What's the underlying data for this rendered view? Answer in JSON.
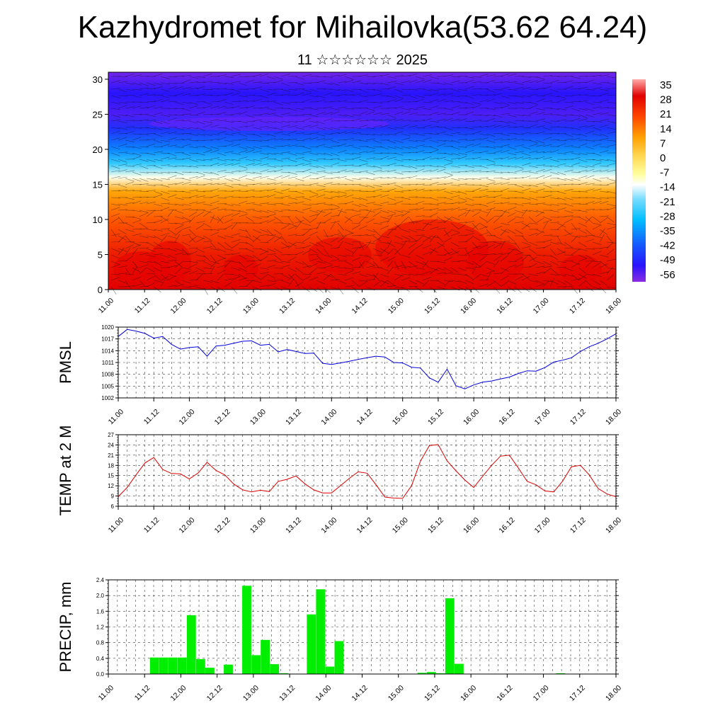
{
  "title": "Kazhydromet for Mihailovka(53.62 64.24)",
  "subtitle": "11 ☆☆☆☆☆☆ 2025",
  "chart_data": [
    {
      "type": "heatmap",
      "name": "cross-section",
      "x_tick_labels": [
        "11.00",
        "11.12",
        "12.00",
        "12.12",
        "13.00",
        "13.12",
        "14.00",
        "14.12",
        "15.00",
        "15.12",
        "16.00",
        "16.12",
        "17.00",
        "17.12",
        "18.00"
      ],
      "y_tick_labels": [
        "0",
        "5",
        "10",
        "15",
        "20",
        "25",
        "30"
      ],
      "ylim": [
        0,
        31
      ],
      "colorbar_labels": [
        "35",
        "28",
        "21",
        "14",
        "7",
        "0",
        "-7",
        "-14",
        "-21",
        "-28",
        "-35",
        "-42",
        "-49",
        "-56"
      ],
      "colorbar_range": [
        -60,
        38
      ],
      "color_profile": [
        {
          "y": 0,
          "t": 30
        },
        {
          "y": 5,
          "t": 26
        },
        {
          "y": 10,
          "t": 18
        },
        {
          "y": 14,
          "t": 9
        },
        {
          "y": 16,
          "t": -12
        },
        {
          "y": 18,
          "t": -26
        },
        {
          "y": 20,
          "t": -37
        },
        {
          "y": 23,
          "t": -48
        },
        {
          "y": 25,
          "t": -55
        },
        {
          "y": 28,
          "t": -52
        },
        {
          "y": 31,
          "t": -58
        }
      ],
      "colors": [
        "#8a2be2",
        "#1a1aff",
        "#00bfff",
        "#ffffff",
        "#ffff99",
        "#ffb000",
        "#ff2000",
        "#e00000"
      ]
    },
    {
      "type": "line",
      "name": "PMSL",
      "ylabel": "PMSL",
      "ylim": [
        1002,
        1020
      ],
      "yticks": [
        1002,
        1005,
        1008,
        1011,
        1014,
        1017,
        1020
      ],
      "x_tick_labels": [
        "11.00",
        "11.12",
        "12.00",
        "12.12",
        "13.00",
        "13.12",
        "14.00",
        "14.12",
        "15.00",
        "15.12",
        "16.00",
        "16.12",
        "17.00",
        "17.12",
        "18.00"
      ],
      "color": "#0000dd",
      "values": [
        1017.6,
        1019.4,
        1019.0,
        1018.4,
        1017.2,
        1017.6,
        1015.6,
        1014.4,
        1014.8,
        1015.0,
        1012.6,
        1015.2,
        1015.4,
        1015.9,
        1016.4,
        1016.5,
        1015.4,
        1015.6,
        1013.7,
        1014.3,
        1013.8,
        1013.3,
        1013.4,
        1010.8,
        1010.5,
        1010.9,
        1011.3,
        1011.8,
        1012.2,
        1012.6,
        1012.4,
        1011.0,
        1010.9,
        1009.8,
        1009.6,
        1007.1,
        1006.0,
        1009.3,
        1005.1,
        1004.3,
        1005.3,
        1006.0,
        1006.3,
        1006.8,
        1007.3,
        1008.2,
        1008.9,
        1008.8,
        1009.7,
        1011.1,
        1011.6,
        1012.2,
        1013.8,
        1015.0,
        1015.9,
        1017.0,
        1018.3
      ]
    },
    {
      "type": "line",
      "name": "TEMP at 2 M",
      "ylabel": "TEMP at 2 M",
      "ylim": [
        6,
        27
      ],
      "yticks": [
        6,
        9,
        12,
        15,
        18,
        21,
        24,
        27
      ],
      "x_tick_labels": [
        "11.00",
        "11.12",
        "12.00",
        "12.12",
        "13.00",
        "13.12",
        "14.00",
        "14.12",
        "15.00",
        "15.12",
        "16.00",
        "16.12",
        "17.00",
        "17.12",
        "18.00"
      ],
      "color": "#dd0000",
      "values": [
        8.8,
        11.5,
        15.2,
        18.7,
        20.3,
        16.8,
        15.6,
        15.5,
        14.0,
        15.8,
        18.9,
        16.5,
        15.2,
        12.5,
        10.8,
        10.2,
        10.7,
        10.3,
        13.3,
        13.9,
        14.9,
        12.6,
        10.8,
        9.9,
        9.9,
        12.0,
        14.2,
        16.1,
        15.7,
        12.3,
        8.7,
        8.4,
        8.3,
        12.0,
        19.2,
        23.8,
        24.1,
        19.3,
        16.4,
        13.7,
        11.5,
        14.8,
        18.0,
        20.7,
        21.0,
        17.3,
        13.3,
        12.3,
        10.5,
        10.2,
        13.4,
        17.6,
        18.0,
        15.2,
        11.2,
        9.6,
        8.8
      ]
    },
    {
      "type": "bar",
      "name": "PRECIP, mm",
      "ylabel": "PRECIP, mm",
      "ylim": [
        0,
        2.4
      ],
      "yticks": [
        "0.0",
        "0.4",
        "0.8",
        "1.2",
        "1.6",
        "2.0",
        "2.4"
      ],
      "x_tick_labels": [
        "11.00",
        "11.12",
        "12.00",
        "12.12",
        "13.00",
        "13.12",
        "14.00",
        "14.12",
        "15.00",
        "15.12",
        "16.00",
        "16.12",
        "17.00",
        "17.12",
        "18.00"
      ],
      "color": "#00ee00",
      "values": [
        0,
        0,
        0,
        0,
        0,
        0.42,
        0.42,
        0.42,
        0.42,
        1.5,
        0.38,
        0.16,
        0,
        0.24,
        0,
        2.25,
        0.48,
        0.87,
        0.25,
        0.02,
        0,
        0,
        1.52,
        2.16,
        0.19,
        0.84,
        0,
        0,
        0,
        0,
        0,
        0,
        0,
        0,
        0.03,
        0.05,
        0.02,
        1.93,
        0.26,
        0,
        0,
        0,
        0,
        0,
        0,
        0,
        0,
        0,
        0,
        0.02,
        0,
        0,
        0,
        0,
        0,
        0
      ]
    }
  ]
}
